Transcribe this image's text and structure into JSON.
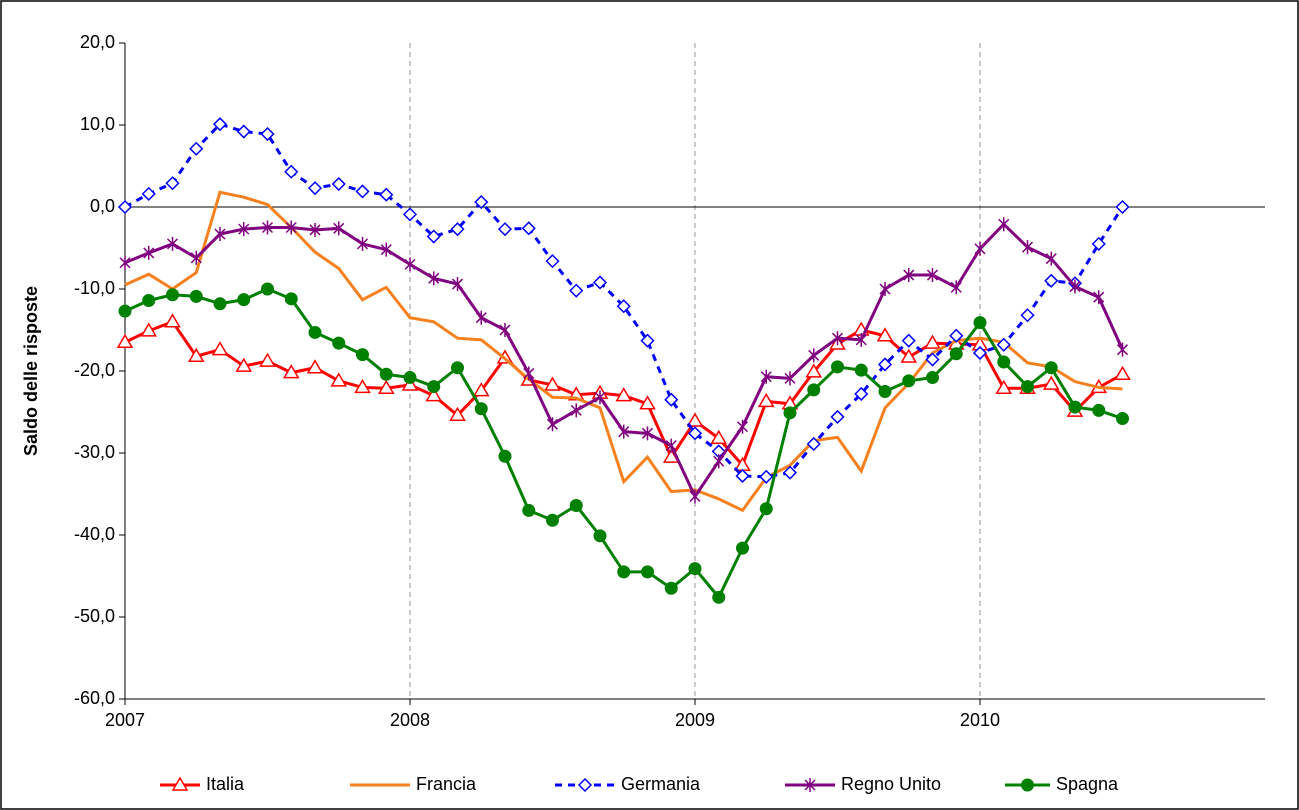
{
  "chart_data": {
    "type": "line",
    "y_label": "Saldo delle risposte",
    "x": [
      2007,
      2007.0833,
      2007.1667,
      2007.25,
      2007.3333,
      2007.4167,
      2007.5,
      2007.5833,
      2007.6667,
      2007.75,
      2007.8333,
      2007.9167,
      2008,
      2008.0833,
      2008.1667,
      2008.25,
      2008.3333,
      2008.4167,
      2008.5,
      2008.5833,
      2008.6667,
      2008.75,
      2008.8333,
      2008.9167,
      2009,
      2009.0833,
      2009.1667,
      2009.25,
      2009.3333,
      2009.4167,
      2009.5,
      2009.5833,
      2009.6667,
      2009.75,
      2009.8333,
      2009.9167,
      2010,
      2010.0833,
      2010.1667,
      2010.25,
      2010.3333,
      2010.4167,
      2010.5
    ],
    "series": [
      {
        "name": "Italia",
        "color": "#ff0000",
        "marker": "triangle",
        "dashed": false,
        "values": [
          -16.5,
          -15.1,
          -14.0,
          -18.2,
          -17.4,
          -19.4,
          -18.8,
          -20.2,
          -19.6,
          -21.2,
          -22.0,
          -22.1,
          -21.7,
          -23.0,
          -25.4,
          -22.4,
          -18.4,
          -21.1,
          -21.7,
          -22.9,
          -22.7,
          -23.0,
          -24.0,
          -30.5,
          -26.1,
          -28.2,
          -31.5,
          -23.7,
          -24.0,
          -20.1,
          -16.7,
          -15.0,
          -15.7,
          -18.3,
          -16.6,
          -16.7,
          -16.8,
          -22.1,
          -22.1,
          -21.6,
          -24.9,
          -22.0,
          -20.4
        ]
      },
      {
        "name": "Francia",
        "color": "#f7801e",
        "marker": "none",
        "dashed": false,
        "values": [
          -9.5,
          -8.2,
          -10.0,
          -8.0,
          1.8,
          1.2,
          0.3,
          -2.5,
          -5.5,
          -7.5,
          -11.3,
          -9.8,
          -13.5,
          -14.0,
          -16.0,
          -16.2,
          -18.5,
          -21.0,
          -23.2,
          -23.3,
          -24.5,
          -33.5,
          -30.5,
          -34.7,
          -34.5,
          -35.6,
          -37.0,
          -33.0,
          -31.5,
          -28.5,
          -28.1,
          -32.2,
          -24.5,
          -21.5,
          -17.8,
          -16.3,
          -16.0,
          -16.5,
          -19.0,
          -19.5,
          -21.3,
          -22.0,
          -22.2
        ]
      },
      {
        "name": "Germania",
        "color": "#0000ff",
        "marker": "diamond",
        "dashed": true,
        "values": [
          0.0,
          1.6,
          2.9,
          7.1,
          10.1,
          9.2,
          8.9,
          4.3,
          2.3,
          2.8,
          1.9,
          1.5,
          -0.9,
          -3.6,
          -2.7,
          0.6,
          -2.7,
          -2.6,
          -6.6,
          -10.2,
          -9.2,
          -12.1,
          -16.3,
          -23.5,
          -27.6,
          -29.8,
          -32.8,
          -32.9,
          -32.4,
          -28.9,
          -25.6,
          -22.8,
          -19.2,
          -16.3,
          -18.6,
          -15.7,
          -17.8,
          -16.8,
          -13.2,
          -9.0,
          -9.3,
          -4.5,
          0.0
        ]
      },
      {
        "name": "Regno Unito",
        "color": "#800080",
        "marker": "star",
        "dashed": false,
        "values": [
          -6.8,
          -5.6,
          -4.5,
          -6.2,
          -3.3,
          -2.7,
          -2.5,
          -2.5,
          -2.8,
          -2.6,
          -4.5,
          -5.2,
          -7.0,
          -8.7,
          -9.4,
          -13.5,
          -15.0,
          -20.3,
          -26.5,
          -24.8,
          -23.2,
          -27.4,
          -27.6,
          -29.1,
          -35.3,
          -31.0,
          -26.8,
          -20.7,
          -20.9,
          -18.1,
          -16.0,
          -16.2,
          -10.0,
          -8.3,
          -8.3,
          -9.8,
          -5.1,
          -2.1,
          -4.9,
          -6.3,
          -9.7,
          -11.0,
          -17.4
        ]
      },
      {
        "name": "Spagna",
        "color": "#008000",
        "marker": "circle",
        "dashed": false,
        "values": [
          -12.7,
          -11.4,
          -10.7,
          -10.9,
          -11.8,
          -11.3,
          -10.0,
          -11.2,
          -15.3,
          -16.6,
          -18.0,
          -20.4,
          -20.8,
          -21.9,
          -19.6,
          -24.6,
          -30.4,
          -37.0,
          -38.2,
          -36.4,
          -40.1,
          -44.5,
          -44.5,
          -46.5,
          -44.1,
          -47.6,
          -41.6,
          -36.8,
          -25.1,
          -22.3,
          -19.5,
          -19.9,
          -22.5,
          -21.2,
          -20.8,
          -17.9,
          -14.1,
          -18.9,
          -21.9,
          -19.6,
          -24.4,
          -24.8,
          -25.8
        ]
      }
    ],
    "xlim": [
      2007,
      2011
    ],
    "xticks": [
      2007,
      2008,
      2009,
      2010
    ],
    "ylim": [
      -60,
      20
    ],
    "yticks": [
      {
        "value": -60,
        "label": "-60,0"
      },
      {
        "value": -50,
        "label": "-50,0"
      },
      {
        "value": -40,
        "label": "-40,0"
      },
      {
        "value": -30,
        "label": "-30,0"
      },
      {
        "value": -20,
        "label": "-20,0"
      },
      {
        "value": -10,
        "label": "-10,0"
      },
      {
        "value": 0,
        "label": "0,0"
      },
      {
        "value": 10,
        "label": "10,0"
      },
      {
        "value": 20,
        "label": "20,0"
      }
    ],
    "x_grid": true,
    "legend": "bottom"
  }
}
